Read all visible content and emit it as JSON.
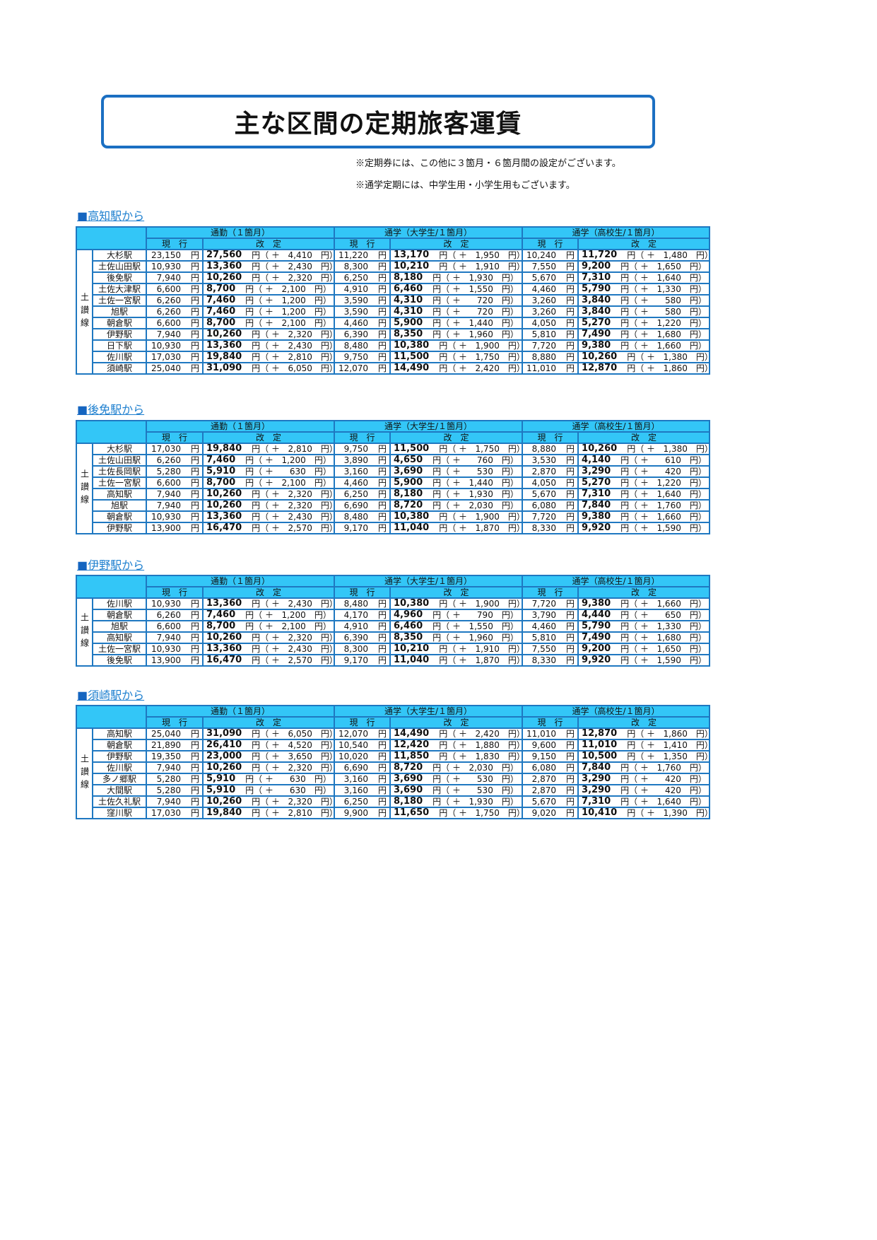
{
  "title": "主な区間の定期旅客運賃",
  "notes": [
    "※定期券には、この他に３箇月・６箇月間の設定がございます。",
    "※通学定期には、中学生用・小学生用もございます。"
  ],
  "colors": {
    "header_bg": "#33c6f7",
    "border": "#1f78c1",
    "accent": "#1b6fc2"
  },
  "headers": {
    "commute": "通勤（１箇月）",
    "university": "通学（大学生/１箇月）",
    "highschool": "通学（高校生/１箇月）",
    "current": "現　行",
    "revised": "改　定",
    "yen": "円",
    "plus": "＋"
  },
  "sections": [
    {
      "title": "高知駅から",
      "line": "土讃線",
      "rows": [
        [
          "大杉駅",
          "23,150",
          "27,560",
          "4,410",
          "11,220",
          "13,170",
          "1,950",
          "10,240",
          "11,720",
          "1,480"
        ],
        [
          "土佐山田駅",
          "10,930",
          "13,360",
          "2,430",
          "8,300",
          "10,210",
          "1,910",
          "7,550",
          "9,200",
          "1,650"
        ],
        [
          "後免駅",
          "7,940",
          "10,260",
          "2,320",
          "6,250",
          "8,180",
          "1,930",
          "5,670",
          "7,310",
          "1,640"
        ],
        [
          "土佐大津駅",
          "6,600",
          "8,700",
          "2,100",
          "4,910",
          "6,460",
          "1,550",
          "4,460",
          "5,790",
          "1,330"
        ],
        [
          "土佐一宮駅",
          "6,260",
          "7,460",
          "1,200",
          "3,590",
          "4,310",
          "720",
          "3,260",
          "3,840",
          "580"
        ],
        [
          "旭駅",
          "6,260",
          "7,460",
          "1,200",
          "3,590",
          "4,310",
          "720",
          "3,260",
          "3,840",
          "580"
        ],
        [
          "朝倉駅",
          "6,600",
          "8,700",
          "2,100",
          "4,460",
          "5,900",
          "1,440",
          "4,050",
          "5,270",
          "1,220"
        ],
        [
          "伊野駅",
          "7,940",
          "10,260",
          "2,320",
          "6,390",
          "8,350",
          "1,960",
          "5,810",
          "7,490",
          "1,680"
        ],
        [
          "日下駅",
          "10,930",
          "13,360",
          "2,430",
          "8,480",
          "10,380",
          "1,900",
          "7,720",
          "9,380",
          "1,660"
        ],
        [
          "佐川駅",
          "17,030",
          "19,840",
          "2,810",
          "9,750",
          "11,500",
          "1,750",
          "8,880",
          "10,260",
          "1,380"
        ],
        [
          "須崎駅",
          "25,040",
          "31,090",
          "6,050",
          "12,070",
          "14,490",
          "2,420",
          "11,010",
          "12,870",
          "1,860"
        ]
      ]
    },
    {
      "title": "後免駅から",
      "line": "土讃線",
      "rows": [
        [
          "大杉駅",
          "17,030",
          "19,840",
          "2,810",
          "9,750",
          "11,500",
          "1,750",
          "8,880",
          "10,260",
          "1,380"
        ],
        [
          "土佐山田駅",
          "6,260",
          "7,460",
          "1,200",
          "3,890",
          "4,650",
          "760",
          "3,530",
          "4,140",
          "610"
        ],
        [
          "土佐長岡駅",
          "5,280",
          "5,910",
          "630",
          "3,160",
          "3,690",
          "530",
          "2,870",
          "3,290",
          "420"
        ],
        [
          "土佐一宮駅",
          "6,600",
          "8,700",
          "2,100",
          "4,460",
          "5,900",
          "1,440",
          "4,050",
          "5,270",
          "1,220"
        ],
        [
          "高知駅",
          "7,940",
          "10,260",
          "2,320",
          "6,250",
          "8,180",
          "1,930",
          "5,670",
          "7,310",
          "1,640"
        ],
        [
          "旭駅",
          "7,940",
          "10,260",
          "2,320",
          "6,690",
          "8,720",
          "2,030",
          "6,080",
          "7,840",
          "1,760"
        ],
        [
          "朝倉駅",
          "10,930",
          "13,360",
          "2,430",
          "8,480",
          "10,380",
          "1,900",
          "7,720",
          "9,380",
          "1,660"
        ],
        [
          "伊野駅",
          "13,900",
          "16,470",
          "2,570",
          "9,170",
          "11,040",
          "1,870",
          "8,330",
          "9,920",
          "1,590"
        ]
      ]
    },
    {
      "title": "伊野駅から",
      "line": "土讃線",
      "rows": [
        [
          "佐川駅",
          "10,930",
          "13,360",
          "2,430",
          "8,480",
          "10,380",
          "1,900",
          "7,720",
          "9,380",
          "1,660"
        ],
        [
          "朝倉駅",
          "6,260",
          "7,460",
          "1,200",
          "4,170",
          "4,960",
          "790",
          "3,790",
          "4,440",
          "650"
        ],
        [
          "旭駅",
          "6,600",
          "8,700",
          "2,100",
          "4,910",
          "6,460",
          "1,550",
          "4,460",
          "5,790",
          "1,330"
        ],
        [
          "高知駅",
          "7,940",
          "10,260",
          "2,320",
          "6,390",
          "8,350",
          "1,960",
          "5,810",
          "7,490",
          "1,680"
        ],
        [
          "土佐一宮駅",
          "10,930",
          "13,360",
          "2,430",
          "8,300",
          "10,210",
          "1,910",
          "7,550",
          "9,200",
          "1,650"
        ],
        [
          "後免駅",
          "13,900",
          "16,470",
          "2,570",
          "9,170",
          "11,040",
          "1,870",
          "8,330",
          "9,920",
          "1,590"
        ]
      ]
    },
    {
      "title": "須崎駅から",
      "line": "土讃線",
      "rows": [
        [
          "高知駅",
          "25,040",
          "31,090",
          "6,050",
          "12,070",
          "14,490",
          "2,420",
          "11,010",
          "12,870",
          "1,860"
        ],
        [
          "朝倉駅",
          "21,890",
          "26,410",
          "4,520",
          "10,540",
          "12,420",
          "1,880",
          "9,600",
          "11,010",
          "1,410"
        ],
        [
          "伊野駅",
          "19,350",
          "23,000",
          "3,650",
          "10,020",
          "11,850",
          "1,830",
          "9,150",
          "10,500",
          "1,350"
        ],
        [
          "佐川駅",
          "7,940",
          "10,260",
          "2,320",
          "6,690",
          "8,720",
          "2,030",
          "6,080",
          "7,840",
          "1,760"
        ],
        [
          "多ノ郷駅",
          "5,280",
          "5,910",
          "630",
          "3,160",
          "3,690",
          "530",
          "2,870",
          "3,290",
          "420"
        ],
        [
          "大間駅",
          "5,280",
          "5,910",
          "630",
          "3,160",
          "3,690",
          "530",
          "2,870",
          "3,290",
          "420"
        ],
        [
          "土佐久礼駅",
          "7,940",
          "10,260",
          "2,320",
          "6,250",
          "8,180",
          "1,930",
          "5,670",
          "7,310",
          "1,640"
        ],
        [
          "窪川駅",
          "17,030",
          "19,840",
          "2,810",
          "9,900",
          "11,650",
          "1,750",
          "9,020",
          "10,410",
          "1,390"
        ]
      ]
    }
  ]
}
